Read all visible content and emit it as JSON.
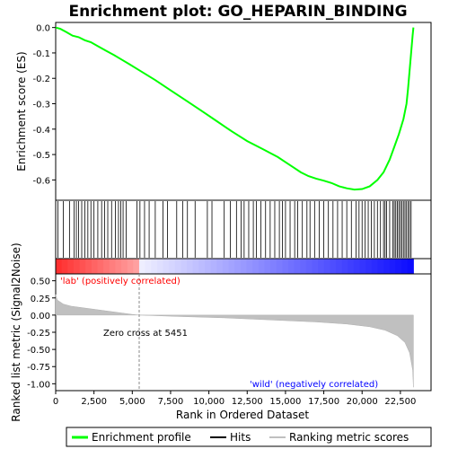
{
  "chart_data": {
    "type": "line",
    "title": "Enrichment plot: GO_HEPARIN_BINDING",
    "x_range": [
      0,
      24500
    ],
    "x_ticks": [
      0,
      2500,
      5000,
      7500,
      10000,
      12500,
      15000,
      17500,
      20000,
      22500
    ],
    "x_tick_labels": [
      "0",
      "2,500",
      "5,000",
      "7,500",
      "10,000",
      "12,500",
      "15,000",
      "17,500",
      "20,000",
      "22,500"
    ],
    "xlabel": "Rank in Ordered Dataset",
    "panels": {
      "enrichment": {
        "ylabel": "Enrichment score (ES)",
        "ylim": [
          -0.68,
          0.02
        ],
        "y_ticks": [
          0.0,
          -0.1,
          -0.2,
          -0.3,
          -0.4,
          -0.5,
          -0.6
        ],
        "y_tick_labels": [
          "0.0",
          "-0.1",
          "-0.2",
          "-0.3",
          "-0.4",
          "-0.5",
          "-0.6"
        ],
        "series_color": "#00ff00",
        "points": [
          [
            0,
            0.0
          ],
          [
            300,
            -0.005
          ],
          [
            700,
            -0.018
          ],
          [
            1100,
            -0.032
          ],
          [
            1500,
            -0.038
          ],
          [
            1900,
            -0.05
          ],
          [
            2300,
            -0.058
          ],
          [
            2800,
            -0.075
          ],
          [
            3300,
            -0.092
          ],
          [
            3800,
            -0.108
          ],
          [
            4300,
            -0.126
          ],
          [
            4800,
            -0.144
          ],
          [
            5451,
            -0.168
          ],
          [
            6500,
            -0.207
          ],
          [
            7500,
            -0.247
          ],
          [
            8500,
            -0.287
          ],
          [
            9500,
            -0.327
          ],
          [
            10500,
            -0.368
          ],
          [
            11500,
            -0.409
          ],
          [
            12500,
            -0.447
          ],
          [
            13500,
            -0.478
          ],
          [
            14500,
            -0.51
          ],
          [
            15000,
            -0.53
          ],
          [
            15500,
            -0.55
          ],
          [
            16000,
            -0.57
          ],
          [
            16500,
            -0.585
          ],
          [
            17000,
            -0.595
          ],
          [
            17500,
            -0.603
          ],
          [
            18000,
            -0.612
          ],
          [
            18500,
            -0.625
          ],
          [
            19000,
            -0.633
          ],
          [
            19500,
            -0.638
          ],
          [
            20000,
            -0.636
          ],
          [
            20500,
            -0.625
          ],
          [
            21000,
            -0.6
          ],
          [
            21400,
            -0.57
          ],
          [
            21800,
            -0.52
          ],
          [
            22100,
            -0.47
          ],
          [
            22400,
            -0.42
          ],
          [
            22700,
            -0.36
          ],
          [
            22900,
            -0.3
          ],
          [
            23000,
            -0.24
          ],
          [
            23100,
            -0.17
          ],
          [
            23200,
            -0.1
          ],
          [
            23300,
            -0.03
          ],
          [
            23350,
            0.0
          ]
        ]
      },
      "hits": {
        "color": "#000000",
        "positions": [
          150,
          500,
          900,
          1200,
          1350,
          1500,
          1700,
          1900,
          2100,
          2300,
          2500,
          2750,
          3000,
          3200,
          3400,
          3650,
          3900,
          4100,
          4250,
          4400,
          4600,
          5300,
          5500,
          5800,
          6100,
          6500,
          7000,
          7300,
          7900,
          8300,
          8600,
          9100,
          9900,
          10200,
          11000,
          11400,
          11800,
          12100,
          12300,
          12600,
          12900,
          13100,
          13400,
          13700,
          14000,
          14300,
          14600,
          14800,
          15000,
          15300,
          15600,
          15800,
          16100,
          16400,
          16600,
          16900,
          17200,
          17500,
          17800,
          18100,
          18400,
          18700,
          19000,
          19300,
          19600,
          19800,
          20000,
          20200,
          20400,
          20600,
          20800,
          21000,
          21200,
          21400,
          21500,
          21600,
          21800,
          22000,
          22100,
          22200,
          22300,
          22400,
          22500,
          22600,
          22700,
          22800,
          22900,
          23000,
          23100,
          23200
        ]
      },
      "ranking": {
        "ylabel": "Ranked list metric (Signal2Noise)",
        "ylim": [
          -1.1,
          0.6
        ],
        "y_ticks": [
          0.5,
          0.25,
          0.0,
          -0.25,
          -0.5,
          -0.75,
          -1.0
        ],
        "y_tick_labels": [
          "0.50",
          "0.25",
          "0.00",
          "-0.25",
          "-0.50",
          "-0.75",
          "-1.00"
        ],
        "fill_color": "#c0c0c0",
        "zero_cross": 5451,
        "zero_cross_label": "Zero cross at 5451",
        "positive_label": "'lab' (positively correlated)",
        "negative_label": "'wild' (negatively correlated)",
        "positive_label_color": "#ff0000",
        "negative_label_color": "#0000ff",
        "points": [
          [
            0,
            0.3
          ],
          [
            100,
            0.22
          ],
          [
            500,
            0.16
          ],
          [
            1000,
            0.13
          ],
          [
            2000,
            0.1
          ],
          [
            3000,
            0.07
          ],
          [
            4000,
            0.04
          ],
          [
            5000,
            0.01
          ],
          [
            5451,
            0.0
          ],
          [
            8000,
            -0.02
          ],
          [
            11000,
            -0.04
          ],
          [
            14000,
            -0.07
          ],
          [
            17000,
            -0.1
          ],
          [
            19000,
            -0.13
          ],
          [
            20500,
            -0.17
          ],
          [
            21500,
            -0.22
          ],
          [
            22300,
            -0.3
          ],
          [
            22800,
            -0.4
          ],
          [
            23100,
            -0.55
          ],
          [
            23300,
            -0.8
          ],
          [
            23350,
            -1.05
          ]
        ]
      }
    },
    "legend": {
      "placement": "bottom",
      "entries": [
        {
          "label": "Enrichment profile",
          "color": "#00ff00"
        },
        {
          "label": "Hits",
          "color": "#000000"
        },
        {
          "label": "Ranking metric scores",
          "color": "#c0c0c0"
        }
      ]
    }
  }
}
